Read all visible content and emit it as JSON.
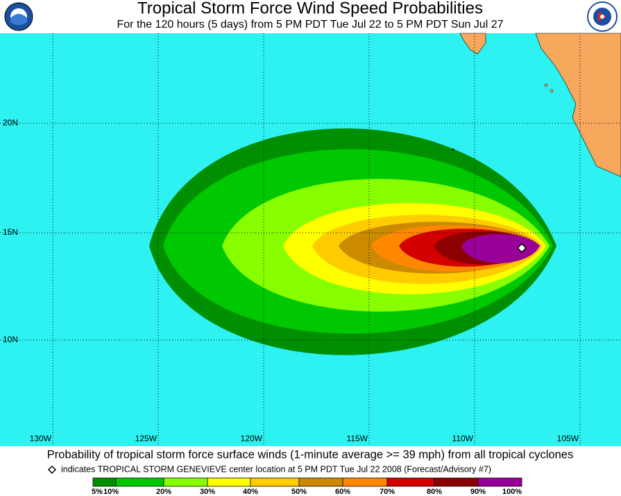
{
  "header": {
    "title": "Tropical Storm Force Wind Speed Probabilities",
    "subtitle": "For the 120 hours (5 days) from 5 PM PDT Tue Jul 22 to 5 PM PDT Sun Jul 27"
  },
  "map": {
    "latitude_labels": [
      "20N",
      "15N",
      "10N"
    ],
    "longitude_labels": [
      "130W",
      "125W",
      "120W",
      "115W",
      "110W",
      "105W"
    ]
  },
  "footer": {
    "caption": "Probability of tropical storm force surface winds (1-minute average >= 39 mph) from all tropical cyclones",
    "note": "indicates TROPICAL STORM GENEVIEVE center location at 5 PM PDT Tue Jul 22 2008 (Forecast/Advisory #7)",
    "legend": {
      "labels": [
        "5%",
        "10%",
        "20%",
        "30%",
        "40%",
        "50%",
        "60%",
        "70%",
        "80%",
        "90%",
        "100%"
      ],
      "colors": [
        "#008f00",
        "#00c800",
        "#88ff00",
        "#ffff00",
        "#ffcc00",
        "#cc8a00",
        "#ff8800",
        "#d40000",
        "#8c0000",
        "#990099"
      ]
    }
  }
}
